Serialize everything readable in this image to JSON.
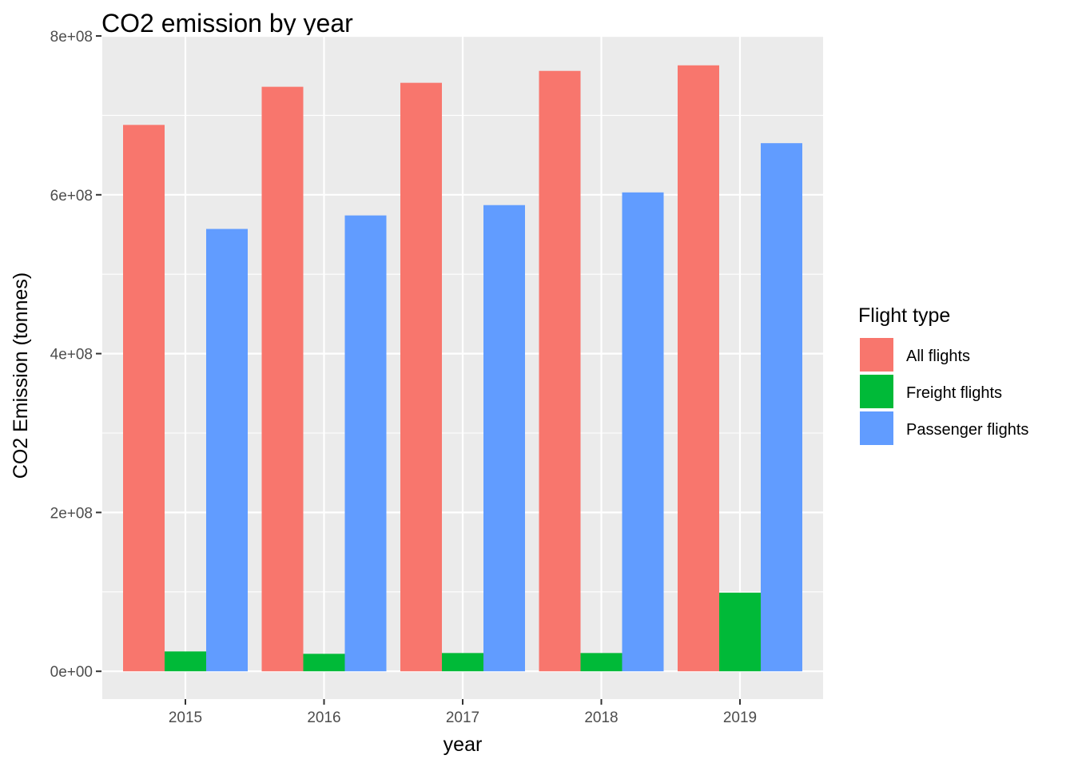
{
  "chart_data": {
    "type": "bar",
    "title": "CO2 emission by year",
    "xlabel": "year",
    "ylabel": "CO2 Emission (tonnes)",
    "categories": [
      "2015",
      "2016",
      "2017",
      "2018",
      "2019"
    ],
    "ylim": [
      -35000000,
      800000000
    ],
    "yticks": [
      0,
      200000000,
      400000000,
      600000000,
      800000000
    ],
    "ytick_labels": [
      "0e+00",
      "2e+08",
      "4e+08",
      "6e+08",
      "8e+08"
    ],
    "grid": true,
    "legend": {
      "title": "Flight type",
      "position": "right"
    },
    "series": [
      {
        "name": "All flights",
        "color": "#F8766D",
        "values": [
          688000000,
          736000000,
          741000000,
          756000000,
          763000000
        ]
      },
      {
        "name": "Freight flights",
        "color": "#00BA38",
        "values": [
          25000000,
          22000000,
          23000000,
          23000000,
          99000000
        ]
      },
      {
        "name": "Passenger flights",
        "color": "#619CFF",
        "values": [
          557000000,
          574000000,
          587000000,
          603000000,
          665000000
        ]
      }
    ]
  }
}
